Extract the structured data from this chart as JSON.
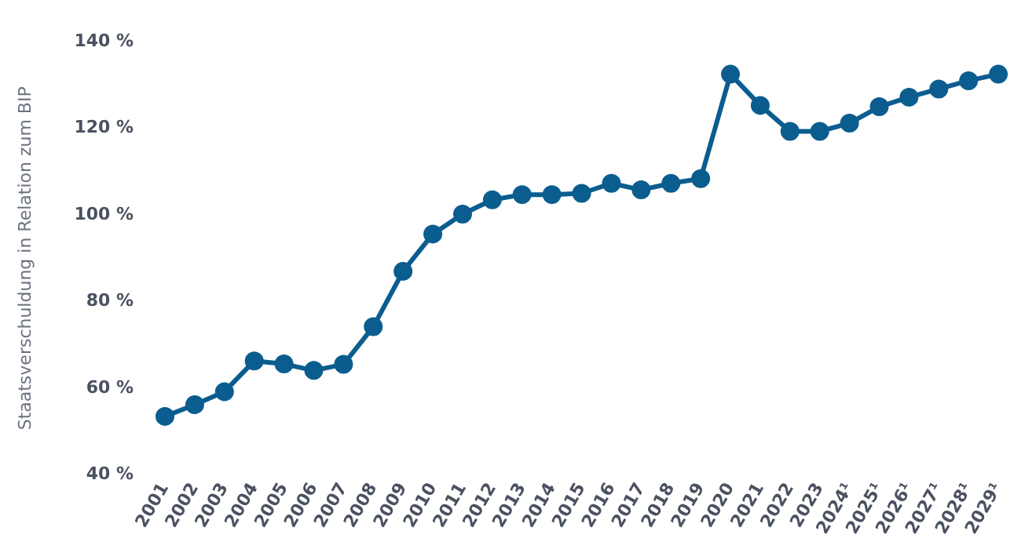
{
  "chart_data": {
    "type": "line",
    "ylabel": "Staatsverschuldung in Relation zum BIP",
    "categories": [
      "2001",
      "2002",
      "2003",
      "2004",
      "2005",
      "2006",
      "2007",
      "2008",
      "2009",
      "2010",
      "2011",
      "2012",
      "2013",
      "2014",
      "2015",
      "2016",
      "2017",
      "2018",
      "2019",
      "2020",
      "2021",
      "2022",
      "2023",
      "2024¹",
      "2025¹",
      "2026¹",
      "2027¹",
      "2028¹",
      "2029¹"
    ],
    "series": [
      {
        "color": "#0b5d8f",
        "values": [
          53.5,
          56.2,
          59.2,
          66.3,
          65.6,
          64.1,
          65.5,
          74.2,
          87,
          95.6,
          100.2,
          103.5,
          104.7,
          104.7,
          105,
          107.3,
          105.8,
          107.3,
          108.4,
          132.5,
          125.3,
          119.3,
          119.3,
          121.2,
          125,
          127.2,
          129.1,
          131,
          132.5
        ]
      }
    ],
    "ylim": [
      40,
      140
    ],
    "yticks": [
      {
        "value": 40,
        "label": "40 %"
      },
      {
        "value": 60,
        "label": "60 %"
      },
      {
        "value": 80,
        "label": "80 %"
      },
      {
        "value": 100,
        "label": "100 %"
      },
      {
        "value": 120,
        "label": "120 %"
      },
      {
        "value": 140,
        "label": "140 %"
      }
    ],
    "grid": false,
    "legend": false,
    "marker": "circle",
    "line_style": "solid"
  }
}
